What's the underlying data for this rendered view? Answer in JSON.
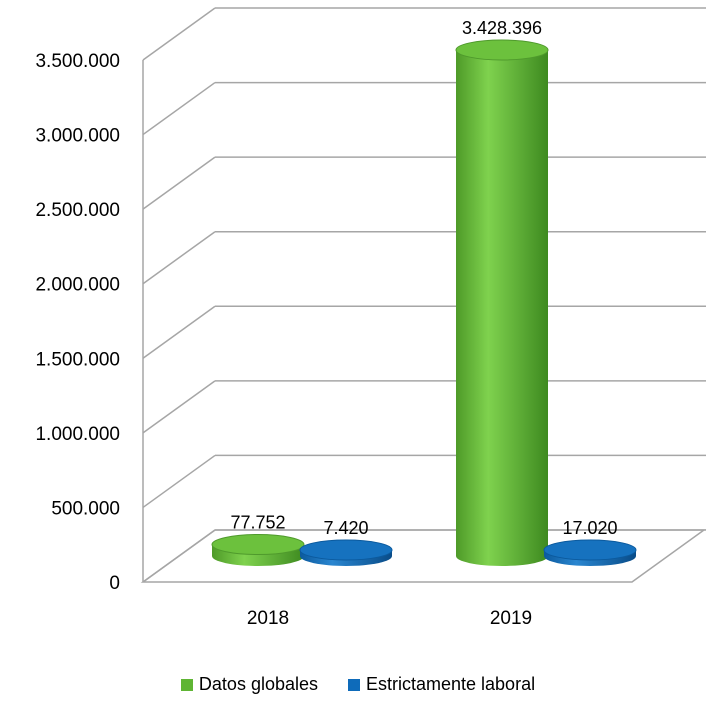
{
  "chart_data": {
    "type": "bar",
    "categories": [
      "2018",
      "2019"
    ],
    "series": [
      {
        "name": "Datos globales",
        "values": [
          77752,
          3428396
        ],
        "labels": [
          "77.752",
          "3.428.396"
        ],
        "color": "#5FB534"
      },
      {
        "name": "Estrictamente laboral",
        "values": [
          7420,
          17020
        ],
        "labels": [
          "7.420",
          "17.020"
        ],
        "color": "#0E6BBA"
      }
    ],
    "ylim": [
      0,
      3500000
    ],
    "y_ticks": [
      0,
      500000,
      1000000,
      1500000,
      2000000,
      2500000,
      3000000,
      3500000
    ],
    "y_tick_labels": [
      "0",
      "500.000",
      "1.000.000",
      "1.500.000",
      "2.000.000",
      "2.500.000",
      "3.000.000",
      "3.500.000"
    ],
    "grid": true,
    "legend_position": "bottom",
    "style": "3d-cylinder"
  }
}
